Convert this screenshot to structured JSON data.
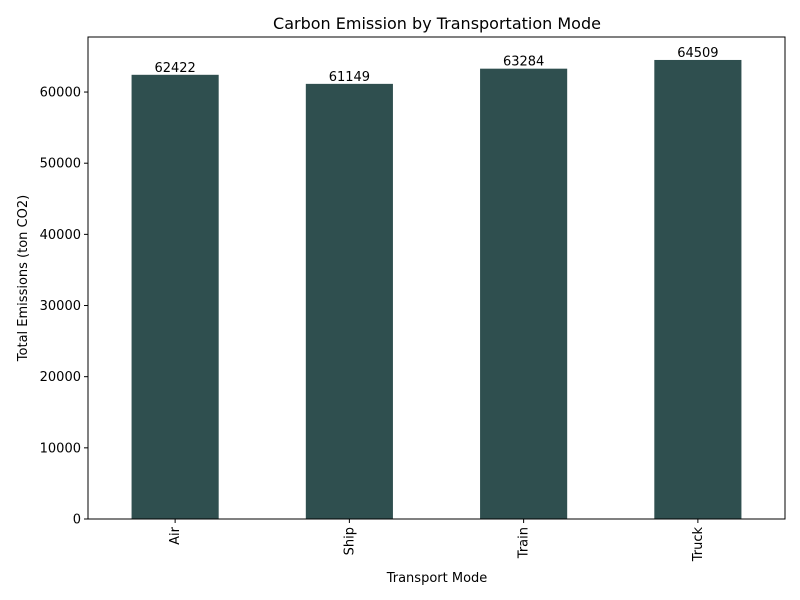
{
  "chart_data": {
    "type": "bar",
    "title": "Carbon Emission by Transportation Mode",
    "xlabel": "Transport Mode",
    "ylabel": "Total Emissions (ton CO2)",
    "categories": [
      "Air",
      "Ship",
      "Train",
      "Truck"
    ],
    "values": [
      62422,
      61149,
      63284,
      64509
    ],
    "data_labels": [
      "62422",
      "61149",
      "63284",
      "64509"
    ],
    "ylim": [
      0,
      67735
    ],
    "yticks": [
      0,
      10000,
      20000,
      30000,
      40000,
      50000,
      60000
    ],
    "ytick_labels": [
      "0",
      "10000",
      "20000",
      "30000",
      "40000",
      "50000",
      "60000"
    ],
    "bar_color": "#2f4f4f",
    "grid": false,
    "legend": "none"
  }
}
